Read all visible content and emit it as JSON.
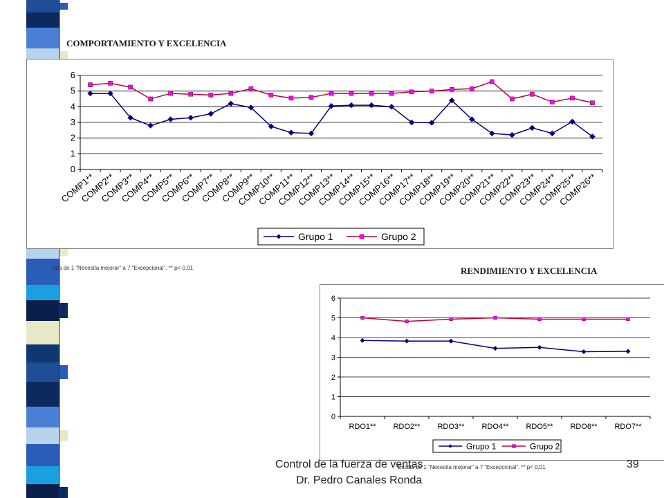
{
  "chart_data": [
    {
      "type": "line",
      "title": "COMPORTAMIENTO Y EXCELENCIA",
      "categories": [
        "COMP1**",
        "COMP2**",
        "COMP3**",
        "COMP4**",
        "COMP5**",
        "COMP6**",
        "COMP7**",
        "COMP8**",
        "COMP9**",
        "COMP10**",
        "COMP11**",
        "COMP12**",
        "COMP13**",
        "COMP14**",
        "COMP15**",
        "COMP16**",
        "COMP17**",
        "COMP18**",
        "COMP19**",
        "COMP20**",
        "COMP21**",
        "COMP22**",
        "COMP23**",
        "COMP24**",
        "COMP25**",
        "COMP26**"
      ],
      "series": [
        {
          "name": "Grupo 1",
          "values": [
            4.85,
            4.85,
            3.3,
            2.8,
            3.2,
            3.3,
            3.55,
            4.2,
            3.95,
            2.75,
            2.35,
            2.3,
            4.05,
            4.1,
            4.1,
            4.0,
            3.0,
            2.98,
            4.4,
            3.2,
            2.3,
            2.2,
            2.65,
            2.3,
            3.05,
            2.1
          ]
        },
        {
          "name": "Grupo 2",
          "values": [
            5.4,
            5.5,
            5.25,
            4.5,
            4.85,
            4.8,
            4.75,
            4.85,
            5.15,
            4.75,
            4.55,
            4.6,
            4.85,
            4.85,
            4.85,
            4.85,
            4.95,
            5.0,
            5.1,
            5.15,
            5.6,
            4.5,
            4.8,
            4.3,
            4.55,
            4.25
          ]
        }
      ],
      "ylim": [
        0,
        6
      ],
      "yticks": [
        0,
        1,
        2,
        3,
        4,
        5,
        6
      ],
      "grid": true,
      "legend": "bottom",
      "colors": {
        "Grupo 1": "#000080",
        "Grupo 2": "#ff00ff",
        "Grupo 2 line": "#c00040"
      },
      "note": "ada de 1 “Necesita mejorar” a 7 “Excepcional”. ** p< 0,01"
    },
    {
      "type": "line",
      "title": "RENDIMIENTO Y EXCELENCIA",
      "categories": [
        "RDO1**",
        "RDO2**",
        "RDO3**",
        "RDO4**",
        "RDO5**",
        "RDO6**",
        "RDO7**"
      ],
      "series": [
        {
          "name": "Grupo 1",
          "values": [
            3.85,
            3.82,
            3.82,
            3.45,
            3.5,
            3.28,
            3.3
          ]
        },
        {
          "name": "Grupo 2",
          "values": [
            5.0,
            4.82,
            4.93,
            5.0,
            4.93,
            4.93,
            4.93
          ]
        }
      ],
      "ylim": [
        0,
        6
      ],
      "yticks": [
        0,
        1,
        2,
        3,
        4,
        5,
        6
      ],
      "grid": true,
      "legend": "bottom",
      "colors": {
        "Grupo 1": "#000080",
        "Grupo 2": "#ff00ff",
        "Grupo 2 line": "#c00040"
      },
      "note": "Escala de 1 “Necesita mejorar” a 7 “Excepcional”. ** p< 0,01"
    }
  ],
  "footer": {
    "line1": "Control de la fuerza de ventas",
    "line2": "Dr. Pedro Canales Ronda",
    "page": "39"
  },
  "decoration": {
    "stripe_colors": [
      "#1f4e96",
      "#0d2a5e",
      "#4a7fd6",
      "#b7d3ec",
      "#2a5db8",
      "#1aa0e0",
      "#0a1f4a",
      "#e8e8c8",
      "#103870"
    ]
  }
}
